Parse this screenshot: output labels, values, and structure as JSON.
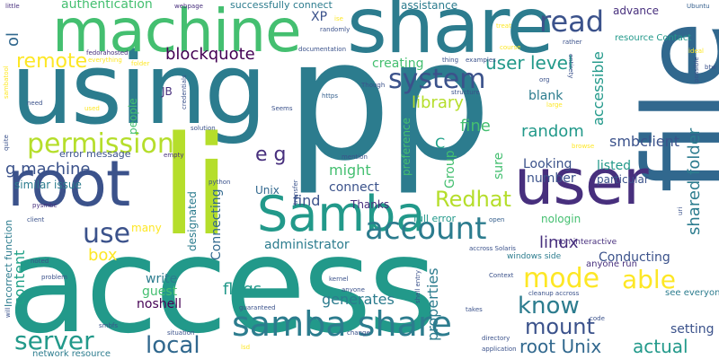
{
  "words": {
    "pp": "pp",
    "access": "access",
    "file": "file",
    "using": "using",
    "li": "li",
    "share": "share",
    "machine": "machine",
    "root": "root",
    "user": "user",
    "samba_cap": "Samba",
    "samba_share": "samba share",
    "account": "account",
    "permission": "permission",
    "system": "system",
    "read": "read",
    "mode": "mode",
    "able": "able",
    "know": "know",
    "mount": "mount",
    "server": "server",
    "local": "local",
    "use": "use",
    "redhat": "Redhat",
    "remote": "remote",
    "user_level": "user level",
    "blockquote": "blockquote",
    "authentication": "authentication",
    "shared_folder": "shared folder",
    "smbclient": "smbclient",
    "root_unix": "root Unix",
    "actual": "actual",
    "eg": "e g",
    "g_machine": "g machine",
    "library": "library",
    "random": "random",
    "linux": "linux",
    "flags": "flags",
    "connect": "connect",
    "box": "box",
    "content": "content",
    "find": "find",
    "might": "might",
    "ol": "ol",
    "accessible": "accessible",
    "creating": "creating",
    "setting": "setting",
    "generates": "generates",
    "fine": "fine",
    "group": "Group",
    "properties": "properties",
    "administrator": "administrator",
    "connecting": "Connecting",
    "conducting": "Conducting",
    "blank": "blank",
    "listed": "listed",
    "looking": "Looking",
    "write": "write",
    "guest": "guest",
    "noshell": "noshell",
    "number": "number",
    "particular": "particular",
    "thanks": "Thanks",
    "designated": "designated",
    "sure": "sure",
    "preference": "preference",
    "c": "C",
    "unix": "Unix",
    "xp": "XP",
    "advance": "advance",
    "jb": "JB",
    "people": "people",
    "many": "many",
    "assistance": "assistance",
    "successfully_connect": "successfully connect",
    "nologin": "nologin",
    "full_error": "full error",
    "similar_issue": "similar issue",
    "error_message": "error message",
    "resource_contact": "resource Contact",
    "see_everyone": "see everyone",
    "anyone_run": "anyone run",
    "windows_side": "windows side",
    "non_interactive": "non interactive",
    "incorrect_function": "Incorrect function",
    "network_resource": "network resource",
    "ubuntu": "Ubuntu",
    "documentation": "documentation",
    "fedorahosted": "fedorahosted",
    "little": "little",
    "webpage": "webpage",
    "seems": "Seems",
    "solution": "solution",
    "credentials": "credentials",
    "examples": "examples",
    "structure": "structure",
    "though": "Though",
    "https": "https",
    "empty": "empty",
    "python": "python",
    "transfer": "transfer",
    "mention": "mention",
    "client": "client",
    "pysmbc": "pysmbc",
    "noted": "noted",
    "need": "need",
    "quite": "quite",
    "will": "will",
    "problem": "problem",
    "kernel": "kernel",
    "anyone": "anyone",
    "shell_entry": "shell entry",
    "takes": "takes",
    "guaranteed": "guaranteed",
    "change": "change",
    "situation": "situation",
    "directory": "directory",
    "application": "application",
    "smbfs": "smbfs",
    "code": "code",
    "cleanup_accross": "cleanup accross",
    "accross_solaris": "accross Solaris",
    "open": "open",
    "context": "Context",
    "rather": "rather",
    "entirety": "entirety",
    "org": "org",
    "course": "course",
    "treat": "treat",
    "thing": "thing",
    "randomly": "randomly",
    "folder": "folder",
    "everything": "everything",
    "large": "large",
    "ideal": "ideal",
    "btw": "btw",
    "possible": "possible",
    "browse": "browse",
    "uri": "uri",
    "sambatool": "sambatool",
    "used": "used",
    "lsd": "lsd",
    "ise": "ise"
  }
}
